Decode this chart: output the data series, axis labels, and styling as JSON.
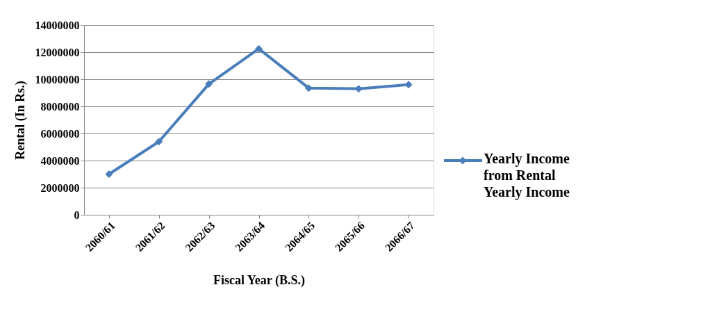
{
  "chart_data": {
    "type": "line",
    "xlabel": "Fiscal Year (B.S.)",
    "ylabel": "Rental (In Rs.)",
    "categories": [
      "2060/61",
      "2061/62",
      "2062/63",
      "2063/64",
      "2064/65",
      "2065/66",
      "2066/67"
    ],
    "series": [
      {
        "name": "Yearly Income from Rental Yearly Income",
        "color": "#4a7ebb",
        "values": [
          3000000,
          5400000,
          9650000,
          12250000,
          9350000,
          9300000,
          9600000
        ]
      }
    ],
    "ylim": [
      0,
      14000000
    ],
    "yticks": [
      0,
      2000000,
      4000000,
      6000000,
      8000000,
      10000000,
      12000000,
      14000000
    ],
    "grid": "y",
    "legend": "right",
    "marker": "diamond",
    "line_style": "solid"
  }
}
